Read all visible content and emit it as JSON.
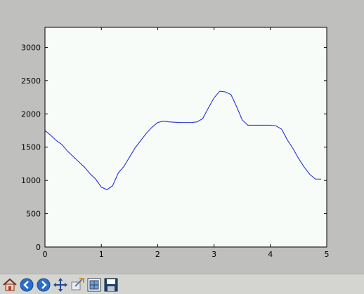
{
  "window": {
    "app": "matplotlib figure",
    "background_color": "#bfc0bd",
    "axes_background_color": "#f8fcf8",
    "toolbar_background_color": "#d4d5d1"
  },
  "toolbar": {
    "buttons": [
      {
        "icon": "home-icon",
        "action": "home"
      },
      {
        "icon": "back-arrow-icon",
        "action": "back"
      },
      {
        "icon": "forward-arrow-icon",
        "action": "forward"
      },
      {
        "icon": "pan-icon",
        "action": "pan"
      },
      {
        "icon": "zoom-icon",
        "action": "zoom"
      },
      {
        "icon": "subplots-icon",
        "action": "configure-subplots"
      },
      {
        "icon": "save-icon",
        "action": "save"
      }
    ]
  },
  "chart_data": {
    "type": "line",
    "title": "",
    "xlabel": "",
    "ylabel": "",
    "xlim": [
      0,
      5
    ],
    "ylim": [
      0,
      3300
    ],
    "xticks": [
      0,
      1,
      2,
      3,
      4,
      5
    ],
    "xtick_labels": [
      "0",
      "1",
      "2",
      "3",
      "4",
      "5"
    ],
    "yticks": [
      0,
      500,
      1000,
      1500,
      2000,
      2500,
      3000
    ],
    "ytick_labels": [
      "0",
      "500",
      "1000",
      "1500",
      "2000",
      "2500",
      "3000"
    ],
    "grid": false,
    "legend": "none",
    "series": [
      {
        "color": "#2630d8",
        "x": [
          0.0,
          0.1,
          0.2,
          0.3,
          0.4,
          0.5,
          0.6,
          0.7,
          0.8,
          0.9,
          1.0,
          1.1,
          1.2,
          1.3,
          1.4,
          1.5,
          1.6,
          1.7,
          1.8,
          1.9,
          2.0,
          2.1,
          2.2,
          2.3,
          2.4,
          2.5,
          2.6,
          2.7,
          2.8,
          2.9,
          3.0,
          3.1,
          3.2,
          3.3,
          3.4,
          3.5,
          3.6,
          3.7,
          3.8,
          3.9,
          4.0,
          4.1,
          4.2,
          4.3,
          4.4,
          4.5,
          4.6,
          4.7,
          4.8,
          4.9
        ],
        "y": [
          1750,
          1680,
          1600,
          1540,
          1440,
          1360,
          1280,
          1200,
          1100,
          1020,
          900,
          860,
          920,
          1110,
          1210,
          1350,
          1490,
          1600,
          1710,
          1800,
          1870,
          1890,
          1880,
          1875,
          1870,
          1870,
          1870,
          1880,
          1930,
          2090,
          2240,
          2340,
          2330,
          2290,
          2110,
          1910,
          1830,
          1830,
          1830,
          1830,
          1830,
          1820,
          1770,
          1610,
          1480,
          1330,
          1200,
          1090,
          1020,
          1020
        ]
      }
    ]
  }
}
